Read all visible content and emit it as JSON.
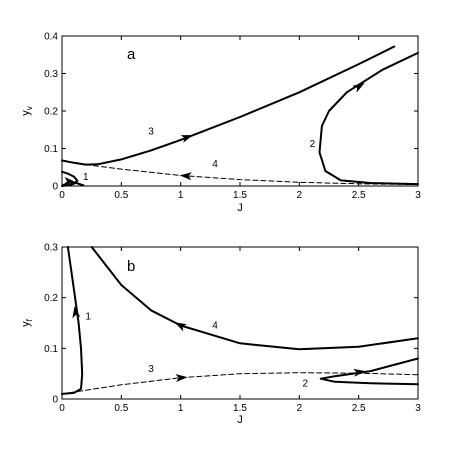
{
  "chart_data": [
    {
      "type": "line",
      "panel_label": "a",
      "xlabel": "J",
      "ylabel": "y",
      "ylabel_sub": "v",
      "xlim": [
        0,
        3
      ],
      "ylim": [
        0,
        0.4
      ],
      "xticks": [
        0,
        0.5,
        1,
        1.5,
        2,
        2.5,
        3
      ],
      "yticks": [
        0,
        0.1,
        0.2,
        0.3,
        0.4
      ],
      "xtick_labels": [
        "0",
        "0.5",
        "1",
        "1.5",
        "2",
        "2.5",
        "3"
      ],
      "ytick_labels": [
        "0",
        "0.1",
        "0.2",
        "0.3",
        "0.4"
      ],
      "grid": false,
      "series": [
        {
          "name": "1",
          "dashed": false,
          "x": [
            0.0,
            0.05,
            0.1,
            0.13,
            0.1,
            0.05,
            0.0,
            0.02,
            0.06,
            0.12,
            0.18
          ],
          "y": [
            0.038,
            0.033,
            0.025,
            0.014,
            0.006,
            0.002,
            0.0,
            0.004,
            0.01,
            0.008,
            0.002
          ],
          "arrows": [
            {
              "x": 0.06,
              "y": 0.012,
              "dir": "forward"
            }
          ]
        },
        {
          "name": "3",
          "dashed": false,
          "x": [
            0.0,
            0.1,
            0.2,
            0.3,
            0.5,
            0.75,
            1.0,
            1.5,
            2.0,
            2.5,
            2.8
          ],
          "y": [
            0.068,
            0.062,
            0.057,
            0.058,
            0.071,
            0.095,
            0.123,
            0.184,
            0.25,
            0.325,
            0.372
          ],
          "arrows": [
            {
              "x": 1.05,
              "y": 0.13,
              "dir": "forward"
            }
          ]
        },
        {
          "name": "4",
          "dashed": true,
          "x": [
            0.2,
            0.5,
            1.0,
            1.5,
            2.0,
            2.5,
            3.0
          ],
          "y": [
            0.057,
            0.045,
            0.028,
            0.017,
            0.01,
            0.006,
            0.004
          ],
          "arrows": [
            {
              "x": 1.05,
              "y": 0.027,
              "dir": "backward"
            }
          ]
        },
        {
          "name": "2",
          "dashed": false,
          "x": [
            3.0,
            2.6,
            2.35,
            2.22,
            2.17,
            2.19,
            2.25,
            2.4,
            2.7,
            3.0
          ],
          "y": [
            0.005,
            0.008,
            0.015,
            0.04,
            0.09,
            0.16,
            0.2,
            0.25,
            0.31,
            0.355
          ],
          "arrows": [
            {
              "x": 2.5,
              "y": 0.265,
              "dir": "forward"
            }
          ]
        }
      ],
      "curve_labels": [
        {
          "text": "1",
          "x": 0.2,
          "y": 0.027
        },
        {
          "text": "2",
          "x": 2.11,
          "y": 0.115
        },
        {
          "text": "3",
          "x": 0.75,
          "y": 0.148
        },
        {
          "text": "4",
          "x": 1.29,
          "y": 0.062
        }
      ]
    },
    {
      "type": "line",
      "panel_label": "b",
      "xlabel": "J",
      "ylabel": "y",
      "ylabel_sub": "f",
      "xlim": [
        0,
        3
      ],
      "ylim": [
        0,
        0.3
      ],
      "xticks": [
        0,
        0.5,
        1,
        1.5,
        2,
        2.5,
        3
      ],
      "yticks": [
        0,
        0.1,
        0.2,
        0.3
      ],
      "xtick_labels": [
        "0",
        "0.5",
        "1",
        "1.5",
        "2",
        "2.5",
        "3"
      ],
      "ytick_labels": [
        "0",
        "0.1",
        "0.2",
        "0.3"
      ],
      "grid": false,
      "series": [
        {
          "name": "1",
          "dashed": false,
          "x": [
            0.0,
            0.1,
            0.16,
            0.17,
            0.16,
            0.14,
            0.11,
            0.08,
            0.05
          ],
          "y": [
            0.01,
            0.012,
            0.02,
            0.05,
            0.1,
            0.15,
            0.2,
            0.25,
            0.3
          ],
          "arrows": [
            {
              "x": 0.115,
              "y": 0.17,
              "dir": "forward"
            }
          ]
        },
        {
          "name": "4",
          "dashed": false,
          "x": [
            0.25,
            0.5,
            0.75,
            1.0,
            1.5,
            2.0,
            2.5,
            3.0
          ],
          "y": [
            0.3,
            0.225,
            0.175,
            0.145,
            0.11,
            0.098,
            0.103,
            0.12
          ],
          "arrows": [
            {
              "x": 1.0,
              "y": 0.145,
              "dir": "backward"
            }
          ]
        },
        {
          "name": "3",
          "dashed": true,
          "x": [
            0.0,
            0.5,
            1.0,
            1.5,
            2.0,
            2.5,
            3.0
          ],
          "y": [
            0.01,
            0.028,
            0.042,
            0.05,
            0.052,
            0.051,
            0.048
          ],
          "arrows": [
            {
              "x": 1.0,
              "y": 0.042,
              "dir": "forward"
            }
          ]
        },
        {
          "name": "2",
          "dashed": false,
          "x": [
            3.0,
            2.6,
            2.3,
            2.18,
            2.3,
            2.6,
            3.0
          ],
          "y": [
            0.08,
            0.055,
            0.045,
            0.04,
            0.034,
            0.031,
            0.029
          ],
          "arrows": [
            {
              "x": 2.5,
              "y": 0.053,
              "dir": "backward"
            }
          ]
        }
      ],
      "curve_labels": [
        {
          "text": "1",
          "x": 0.22,
          "y": 0.165
        },
        {
          "text": "2",
          "x": 2.05,
          "y": 0.033
        },
        {
          "text": "3",
          "x": 0.75,
          "y": 0.061
        },
        {
          "text": "4",
          "x": 1.29,
          "y": 0.147
        }
      ]
    }
  ]
}
